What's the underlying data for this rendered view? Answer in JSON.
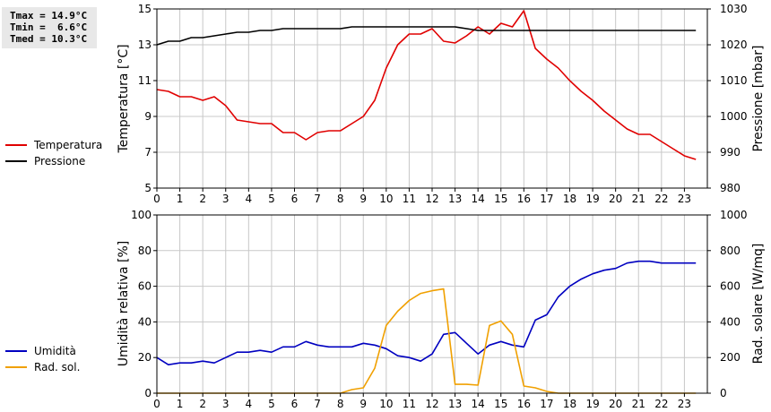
{
  "stats": [
    "Tmax = 14.9°C",
    "Tmin =  6.6°C",
    "Tmed = 10.3°C"
  ],
  "chart_data": [
    {
      "type": "line",
      "xlim": [
        0,
        24
      ],
      "xticks": [
        "0",
        "1",
        "2",
        "3",
        "4",
        "5",
        "6",
        "7",
        "8",
        "9",
        "10",
        "11",
        "12",
        "13",
        "14",
        "15",
        "16",
        "17",
        "18",
        "19",
        "20",
        "21",
        "22",
        "23"
      ],
      "ylabel": "Temperatura [°C]",
      "ylim": [
        5,
        15
      ],
      "yticks": [
        "5",
        "7",
        "9",
        "11",
        "13",
        "15"
      ],
      "y2label": "Pressione [mbar]",
      "y2lim": [
        980,
        1030
      ],
      "y2ticks": [
        "980",
        "990",
        "1000",
        "1010",
        "1020",
        "1030"
      ],
      "grid": true,
      "legend_position": "left",
      "series": [
        {
          "name": "Temperatura",
          "color": "#e00000",
          "axis": "left",
          "x": [
            0,
            0.5,
            1,
            1.5,
            2,
            2.5,
            3,
            3.5,
            4,
            4.5,
            5,
            5.5,
            6,
            6.5,
            7,
            7.5,
            8,
            8.5,
            9,
            9.5,
            10,
            10.5,
            11,
            11.5,
            12,
            12.5,
            13,
            13.5,
            14,
            14.5,
            15,
            15.5,
            16,
            16.5,
            17,
            17.5,
            18,
            18.5,
            19,
            19.5,
            20,
            20.5,
            21,
            21.5,
            22,
            22.5,
            23,
            23.5
          ],
          "values": [
            10.5,
            10.4,
            10.1,
            10.1,
            9.9,
            10.1,
            9.6,
            8.8,
            8.7,
            8.6,
            8.6,
            8.1,
            8.1,
            7.7,
            8.1,
            8.2,
            8.2,
            8.6,
            9.0,
            9.9,
            11.7,
            13.0,
            13.6,
            13.6,
            13.9,
            13.2,
            13.1,
            13.5,
            14.0,
            13.6,
            14.2,
            14.0,
            14.9,
            12.8,
            12.2,
            11.7,
            11.0,
            10.4,
            9.9,
            9.3,
            8.8,
            8.3,
            8.0,
            8.0,
            7.6,
            7.2,
            6.8,
            6.6
          ]
        },
        {
          "name": "Pressione",
          "color": "#000000",
          "axis": "right",
          "x": [
            0,
            0.5,
            1,
            1.5,
            2,
            2.5,
            3,
            3.5,
            4,
            4.5,
            5,
            5.5,
            6,
            6.5,
            7,
            7.5,
            8,
            8.5,
            9,
            9.5,
            10,
            10.5,
            11,
            11.5,
            12,
            12.5,
            13,
            13.5,
            14,
            14.5,
            15,
            15.5,
            16,
            16.5,
            17,
            17.5,
            18,
            18.5,
            19,
            19.5,
            20,
            20.5,
            21,
            21.5,
            22,
            22.5,
            23,
            23.5
          ],
          "values": [
            1020,
            1021,
            1021,
            1022,
            1022,
            1022.5,
            1023,
            1023.5,
            1023.5,
            1024,
            1024,
            1024.5,
            1024.5,
            1024.5,
            1024.5,
            1024.5,
            1024.5,
            1025,
            1025,
            1025,
            1025,
            1025,
            1025,
            1025,
            1025,
            1025,
            1025,
            1024.5,
            1024,
            1024,
            1024,
            1024,
            1024,
            1024,
            1024,
            1024,
            1024,
            1024,
            1024,
            1024,
            1024,
            1024,
            1024,
            1024,
            1024,
            1024,
            1024,
            1024
          ]
        }
      ]
    },
    {
      "type": "line",
      "xlim": [
        0,
        24
      ],
      "xticks": [
        "0",
        "1",
        "2",
        "3",
        "4",
        "5",
        "6",
        "7",
        "8",
        "9",
        "10",
        "11",
        "12",
        "13",
        "14",
        "15",
        "16",
        "17",
        "18",
        "19",
        "20",
        "21",
        "22",
        "23"
      ],
      "ylabel": "Umidità relativa [%]",
      "ylim": [
        0,
        100
      ],
      "yticks": [
        "0",
        "20",
        "40",
        "60",
        "80",
        "100"
      ],
      "y2label": "Rad. solare [W/mq]",
      "y2lim": [
        0,
        1000
      ],
      "y2ticks": [
        "0",
        "200",
        "400",
        "600",
        "800",
        "1000"
      ],
      "grid": true,
      "legend_position": "left",
      "series": [
        {
          "name": "Umidità",
          "color": "#0000c0",
          "axis": "left",
          "x": [
            0,
            0.5,
            1,
            1.5,
            2,
            2.5,
            3,
            3.5,
            4,
            4.5,
            5,
            5.5,
            6,
            6.5,
            7,
            7.5,
            8,
            8.5,
            9,
            9.5,
            10,
            10.5,
            11,
            11.5,
            12,
            12.5,
            13,
            13.5,
            14,
            14.5,
            15,
            15.5,
            16,
            16.5,
            17,
            17.5,
            18,
            18.5,
            19,
            19.5,
            20,
            20.5,
            21,
            21.5,
            22,
            22.5,
            23,
            23.5
          ],
          "values": [
            20,
            16,
            17,
            17,
            18,
            17,
            20,
            23,
            23,
            24,
            23,
            26,
            26,
            29,
            27,
            26,
            26,
            26,
            28,
            27,
            25,
            21,
            20,
            18,
            22,
            33,
            34,
            28,
            22,
            27,
            29,
            27,
            26,
            41,
            44,
            54,
            60,
            64,
            67,
            69,
            70,
            73,
            74,
            74,
            73,
            73,
            73,
            73
          ]
        },
        {
          "name": "Rad. sol.",
          "color": "#f0a000",
          "axis": "right",
          "x": [
            0,
            0.5,
            1,
            1.5,
            2,
            2.5,
            3,
            3.5,
            4,
            4.5,
            5,
            5.5,
            6,
            6.5,
            7,
            7.5,
            8,
            8.5,
            9,
            9.5,
            10,
            10.5,
            11,
            11.5,
            12,
            12.5,
            13,
            13.5,
            14,
            14.5,
            15,
            15.5,
            16,
            16.5,
            17,
            17.5,
            18,
            18.5,
            19,
            19.5,
            20,
            20.5,
            21,
            21.5,
            22,
            22.5,
            23,
            23.5
          ],
          "values": [
            0,
            0,
            0,
            0,
            0,
            0,
            0,
            0,
            0,
            0,
            0,
            0,
            0,
            0,
            0,
            0,
            0,
            20,
            30,
            140,
            380,
            460,
            520,
            560,
            575,
            585,
            50,
            50,
            45,
            380,
            405,
            330,
            40,
            30,
            10,
            0,
            0,
            0,
            0,
            0,
            0,
            0,
            0,
            0,
            0,
            0,
            0,
            0
          ]
        }
      ]
    }
  ]
}
